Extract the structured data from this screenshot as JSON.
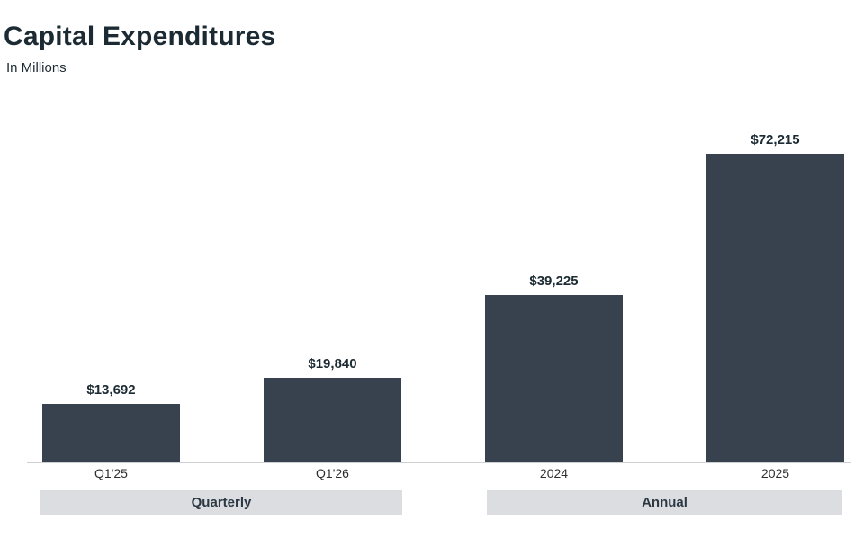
{
  "header": {
    "title": "Capital Expenditures",
    "subtitle": "In Millions"
  },
  "chart_data": {
    "type": "bar",
    "title": "Capital Expenditures",
    "subtitle": "In Millions",
    "categories": [
      "Q1'25",
      "Q1'26",
      "2024",
      "2025"
    ],
    "values": [
      13692,
      19840,
      39225,
      72215
    ],
    "value_labels": [
      "$13,692",
      "$19,840",
      "$39,225",
      "$72,215"
    ],
    "groups": [
      {
        "label": "Quarterly",
        "categories": [
          "Q1'25",
          "Q1'26"
        ]
      },
      {
        "label": "Annual",
        "categories": [
          "2024",
          "2025"
        ]
      }
    ],
    "xlabel": "",
    "ylabel": "",
    "ylim": [
      0,
      72215
    ],
    "grid": false,
    "legend": false,
    "bar_color": "#37424e",
    "band_color": "#dbdde0",
    "axis_line_color": "#cdd0d3"
  }
}
